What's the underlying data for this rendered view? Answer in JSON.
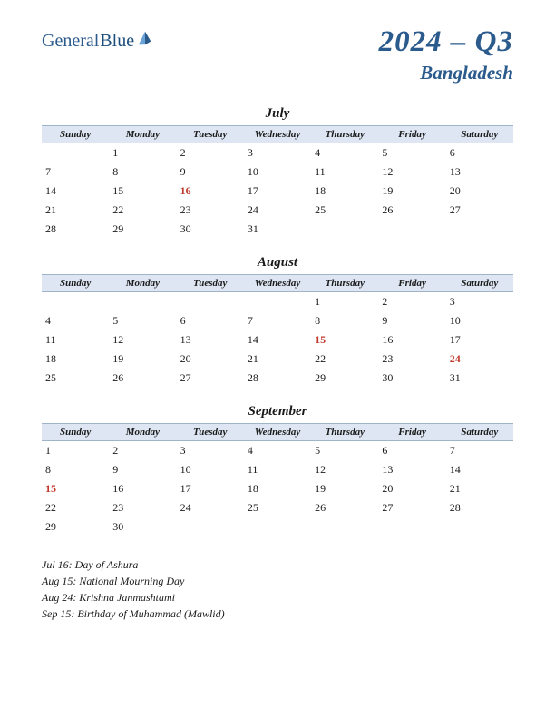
{
  "logo": {
    "general": "General",
    "blue": "Blue"
  },
  "title": {
    "main": "2024 – Q3",
    "sub": "Bangladesh"
  },
  "weekdays": [
    "Sunday",
    "Monday",
    "Tuesday",
    "Wednesday",
    "Thursday",
    "Friday",
    "Saturday"
  ],
  "colors": {
    "header_bg": "#dde6f2",
    "header_border": "#9fb3c9",
    "title_color": "#2b5a8c",
    "text": "#1a1a1a",
    "holiday": "#c0392b"
  },
  "months": [
    {
      "name": "July",
      "weeks": [
        [
          "",
          "1",
          "2",
          "3",
          "4",
          "5",
          "6"
        ],
        [
          "7",
          "8",
          "9",
          "10",
          "11",
          "12",
          "13"
        ],
        [
          "14",
          "15",
          "16",
          "17",
          "18",
          "19",
          "20"
        ],
        [
          "21",
          "22",
          "23",
          "24",
          "25",
          "26",
          "27"
        ],
        [
          "28",
          "29",
          "30",
          "31",
          "",
          "",
          ""
        ]
      ],
      "holidays": [
        "16"
      ]
    },
    {
      "name": "August",
      "weeks": [
        [
          "",
          "",
          "",
          "",
          "1",
          "2",
          "3"
        ],
        [
          "4",
          "5",
          "6",
          "7",
          "8",
          "9",
          "10"
        ],
        [
          "11",
          "12",
          "13",
          "14",
          "15",
          "16",
          "17"
        ],
        [
          "18",
          "19",
          "20",
          "21",
          "22",
          "23",
          "24"
        ],
        [
          "25",
          "26",
          "27",
          "28",
          "29",
          "30",
          "31"
        ]
      ],
      "holidays": [
        "15",
        "24"
      ]
    },
    {
      "name": "September",
      "weeks": [
        [
          "1",
          "2",
          "3",
          "4",
          "5",
          "6",
          "7"
        ],
        [
          "8",
          "9",
          "10",
          "11",
          "12",
          "13",
          "14"
        ],
        [
          "15",
          "16",
          "17",
          "18",
          "19",
          "20",
          "21"
        ],
        [
          "22",
          "23",
          "24",
          "25",
          "26",
          "27",
          "28"
        ],
        [
          "29",
          "30",
          "",
          "",
          "",
          "",
          ""
        ]
      ],
      "holidays": [
        "15"
      ]
    }
  ],
  "holiday_list": [
    "Jul 16: Day of Ashura",
    "Aug 15: National Mourning Day",
    "Aug 24: Krishna Janmashtami",
    "Sep 15: Birthday of Muhammad (Mawlid)"
  ]
}
